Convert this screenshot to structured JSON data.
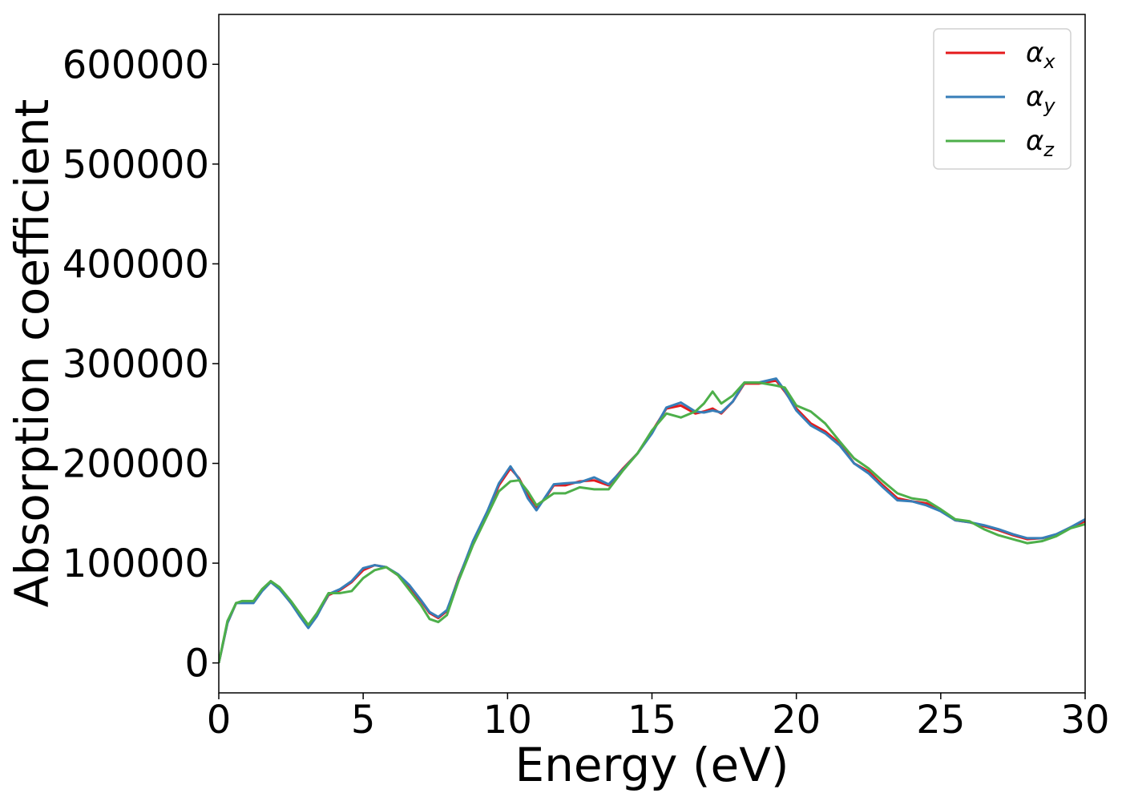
{
  "chart_data": {
    "type": "line",
    "xlabel": "Energy (eV)",
    "ylabel": "Absorption coefficient",
    "xlim": [
      0,
      30
    ],
    "ylim": [
      -30000,
      650000
    ],
    "xticks": [
      0,
      5,
      10,
      15,
      20,
      25,
      30
    ],
    "xtick_labels": [
      "0",
      "5",
      "10",
      "15",
      "20",
      "25",
      "30"
    ],
    "yticks": [
      0,
      100000,
      200000,
      300000,
      400000,
      500000,
      600000
    ],
    "ytick_labels": [
      "0",
      "100000",
      "200000",
      "300000",
      "400000",
      "500000",
      "600000"
    ],
    "grid": false,
    "legend_position": "top-right",
    "series": [
      {
        "name": "αx",
        "legend_base": "α",
        "legend_sub": "x",
        "color": "#e41a1c",
        "x": [
          0,
          0.3,
          0.6,
          0.8,
          1.2,
          1.5,
          1.8,
          2.1,
          2.5,
          2.8,
          3.1,
          3.4,
          3.8,
          4.2,
          4.6,
          5.0,
          5.4,
          5.8,
          6.2,
          6.6,
          7.0,
          7.3,
          7.6,
          7.9,
          8.3,
          8.8,
          9.3,
          9.7,
          10.1,
          10.4,
          10.7,
          11.0,
          11.3,
          11.6,
          12.0,
          12.5,
          13.0,
          13.5,
          14.0,
          14.5,
          15.0,
          15.5,
          16.0,
          16.5,
          16.8,
          17.1,
          17.4,
          17.8,
          18.2,
          18.7,
          19.3,
          19.6,
          20.0,
          20.5,
          21.0,
          21.5,
          22.0,
          22.5,
          23.0,
          23.5,
          24.0,
          24.5,
          25.0,
          25.5,
          26.0,
          26.5,
          27.0,
          27.5,
          28.0,
          28.5,
          29.0,
          29.5,
          30.0
        ],
        "y": [
          0,
          40000,
          60000,
          61000,
          62000,
          73000,
          82000,
          75000,
          60000,
          48000,
          36000,
          48000,
          68000,
          73000,
          81000,
          93000,
          98000,
          96000,
          88000,
          75000,
          62000,
          50000,
          45000,
          52000,
          85000,
          120000,
          150000,
          178000,
          195000,
          185000,
          168000,
          155000,
          165000,
          178000,
          178000,
          182000,
          183000,
          178000,
          195000,
          210000,
          232000,
          255000,
          258000,
          250000,
          252000,
          255000,
          250000,
          262000,
          280000,
          280000,
          283000,
          272000,
          255000,
          240000,
          232000,
          220000,
          200000,
          192000,
          178000,
          165000,
          162000,
          160000,
          153000,
          143000,
          141000,
          137000,
          133000,
          128000,
          124000,
          125000,
          128000,
          136000,
          142000
        ]
      },
      {
        "name": "αy",
        "legend_base": "α",
        "legend_sub": "y",
        "color": "#377eb8",
        "x": [
          0,
          0.3,
          0.6,
          0.8,
          1.2,
          1.5,
          1.8,
          2.1,
          2.5,
          2.8,
          3.1,
          3.4,
          3.8,
          4.2,
          4.6,
          5.0,
          5.4,
          5.8,
          6.2,
          6.6,
          7.0,
          7.3,
          7.6,
          7.9,
          8.3,
          8.8,
          9.3,
          9.7,
          10.1,
          10.4,
          10.7,
          11.0,
          11.3,
          11.6,
          12.0,
          12.5,
          13.0,
          13.5,
          14.0,
          14.5,
          15.0,
          15.5,
          16.0,
          16.5,
          16.8,
          17.1,
          17.4,
          17.8,
          18.2,
          18.7,
          19.3,
          19.6,
          20.0,
          20.5,
          21.0,
          21.5,
          22.0,
          22.5,
          23.0,
          23.5,
          24.0,
          24.5,
          25.0,
          25.5,
          26.0,
          26.5,
          27.0,
          27.5,
          28.0,
          28.5,
          29.0,
          29.5,
          30.0
        ],
        "y": [
          0,
          40000,
          60000,
          60000,
          60000,
          72000,
          81000,
          74000,
          60000,
          47000,
          35000,
          47000,
          69000,
          74000,
          82000,
          95000,
          98000,
          96000,
          89000,
          78000,
          63000,
          51000,
          46000,
          53000,
          84000,
          122000,
          152000,
          180000,
          197000,
          184000,
          165000,
          153000,
          166000,
          179000,
          180000,
          181000,
          186000,
          179000,
          194000,
          210000,
          230000,
          256000,
          261000,
          252000,
          251000,
          253000,
          251000,
          262000,
          281000,
          281000,
          285000,
          273000,
          253000,
          238000,
          230000,
          218000,
          200000,
          190000,
          176000,
          163000,
          162000,
          158000,
          152000,
          143000,
          141000,
          138000,
          134000,
          129000,
          125000,
          125000,
          129000,
          136000,
          144000
        ]
      },
      {
        "name": "αz",
        "legend_base": "α",
        "legend_sub": "z",
        "color": "#4daf4a",
        "x": [
          0,
          0.3,
          0.6,
          0.8,
          1.2,
          1.5,
          1.8,
          2.1,
          2.5,
          2.8,
          3.1,
          3.4,
          3.8,
          4.2,
          4.6,
          5.0,
          5.4,
          5.8,
          6.2,
          6.6,
          7.0,
          7.3,
          7.6,
          7.9,
          8.3,
          8.8,
          9.3,
          9.7,
          10.1,
          10.4,
          10.7,
          11.0,
          11.3,
          11.6,
          12.0,
          12.5,
          13.0,
          13.5,
          14.0,
          14.5,
          15.0,
          15.5,
          16.0,
          16.5,
          16.8,
          17.1,
          17.4,
          17.8,
          18.2,
          18.7,
          19.3,
          19.6,
          20.0,
          20.5,
          21.0,
          21.5,
          22.0,
          22.5,
          23.0,
          23.5,
          24.0,
          24.5,
          25.0,
          25.5,
          26.0,
          26.5,
          27.0,
          27.5,
          28.0,
          28.5,
          29.0,
          29.5,
          30.0
        ],
        "y": [
          0,
          42000,
          60000,
          62000,
          62000,
          74000,
          82000,
          76000,
          62000,
          50000,
          38000,
          50000,
          70000,
          70000,
          72000,
          85000,
          93000,
          96000,
          88000,
          73000,
          58000,
          44000,
          41000,
          48000,
          82000,
          118000,
          148000,
          172000,
          182000,
          183000,
          172000,
          158000,
          164000,
          170000,
          170000,
          176000,
          174000,
          174000,
          193000,
          210000,
          233000,
          250000,
          246000,
          252000,
          260000,
          272000,
          260000,
          268000,
          281000,
          281000,
          278000,
          276000,
          258000,
          252000,
          240000,
          222000,
          205000,
          195000,
          182000,
          170000,
          165000,
          163000,
          154000,
          144000,
          142000,
          134000,
          128000,
          124000,
          120000,
          122000,
          127000,
          135000,
          139000
        ]
      }
    ]
  }
}
